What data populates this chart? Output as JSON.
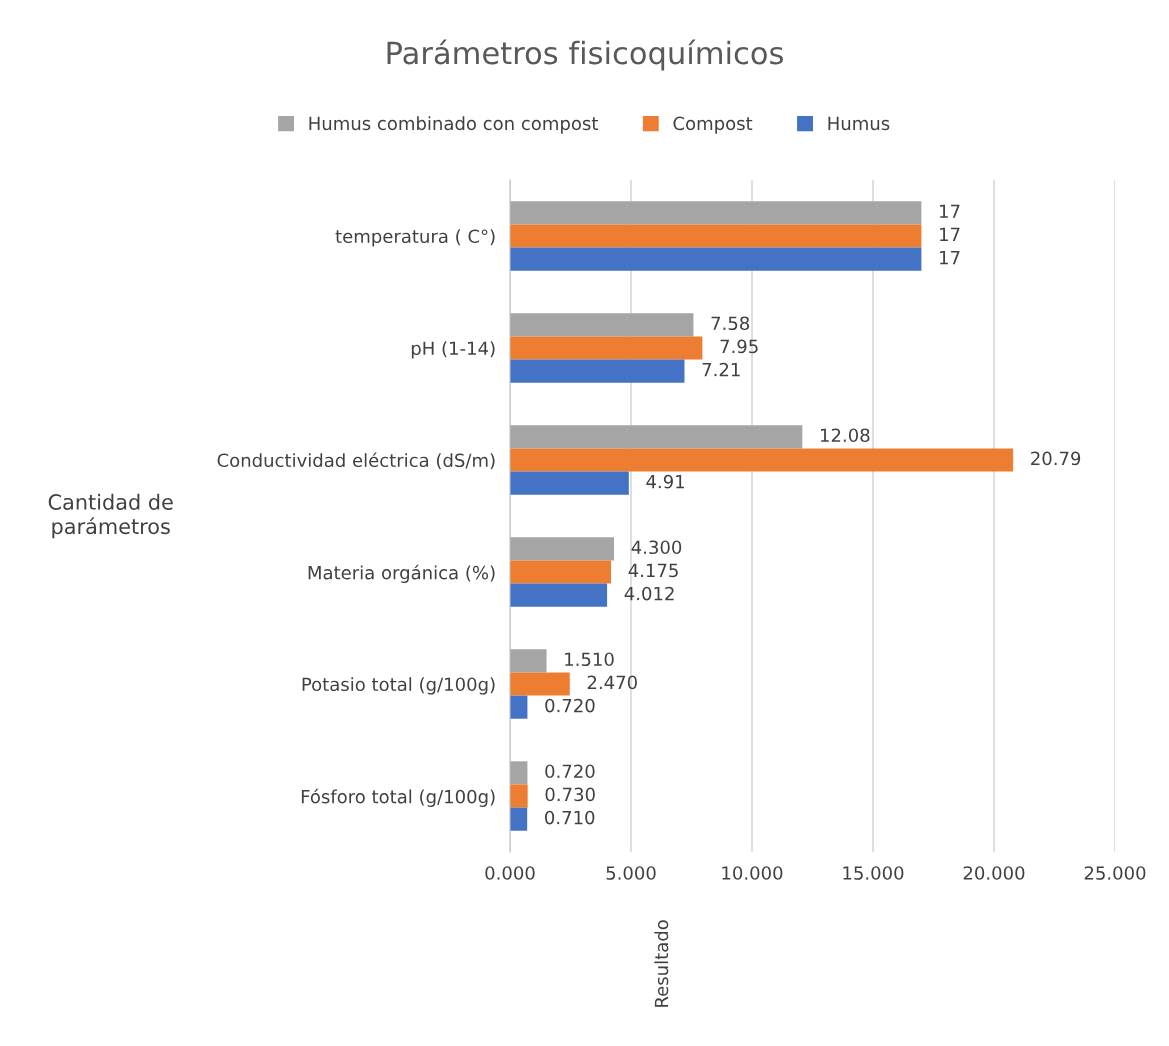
{
  "chart_data": {
    "type": "bar",
    "orientation": "horizontal",
    "title": "Parámetros fisicoquímicos",
    "annotations": [
      "Resultado"
    ],
    "ylabel": "Cantidad de\nparámetros",
    "categories": [
      "temperatura ( C°)",
      "pH (1-14)",
      "Conductividad eléctrica (dS/m)",
      "Materia orgánica (%)",
      "Potasio total (g/100g)",
      "Fósforo total (g/100g)"
    ],
    "series": [
      {
        "name": "Humus combinado con compost",
        "color": "#a5a5a5",
        "values": [
          17,
          7.58,
          12.08,
          4.3,
          1.51,
          0.72
        ],
        "value_labels": [
          "17",
          "7.58",
          "12.08",
          "4.300",
          "1.510",
          "0.720"
        ]
      },
      {
        "name": "Compost",
        "color": "#ed7d31",
        "values": [
          17,
          7.95,
          20.79,
          4.175,
          2.47,
          0.73
        ],
        "value_labels": [
          "17",
          "7.95",
          "20.79",
          "4.175",
          "2.470",
          "0.730"
        ]
      },
      {
        "name": "Humus",
        "color": "#4472c4",
        "values": [
          17,
          7.21,
          4.91,
          4.012,
          0.72,
          0.71
        ],
        "value_labels": [
          "17",
          "7.21",
          "4.91",
          "4.012",
          "0.720",
          "0.710"
        ]
      }
    ],
    "xlim": [
      0,
      25
    ],
    "xticks": [
      {
        "value": 0,
        "label": "0.000"
      },
      {
        "value": 5,
        "label": "5.000"
      },
      {
        "value": 10,
        "label": "10.000"
      },
      {
        "value": 15,
        "label": "15.000"
      },
      {
        "value": 20,
        "label": "20.000"
      },
      {
        "value": 25,
        "label": "25.000"
      }
    ],
    "grid": "x",
    "legend": "top"
  }
}
